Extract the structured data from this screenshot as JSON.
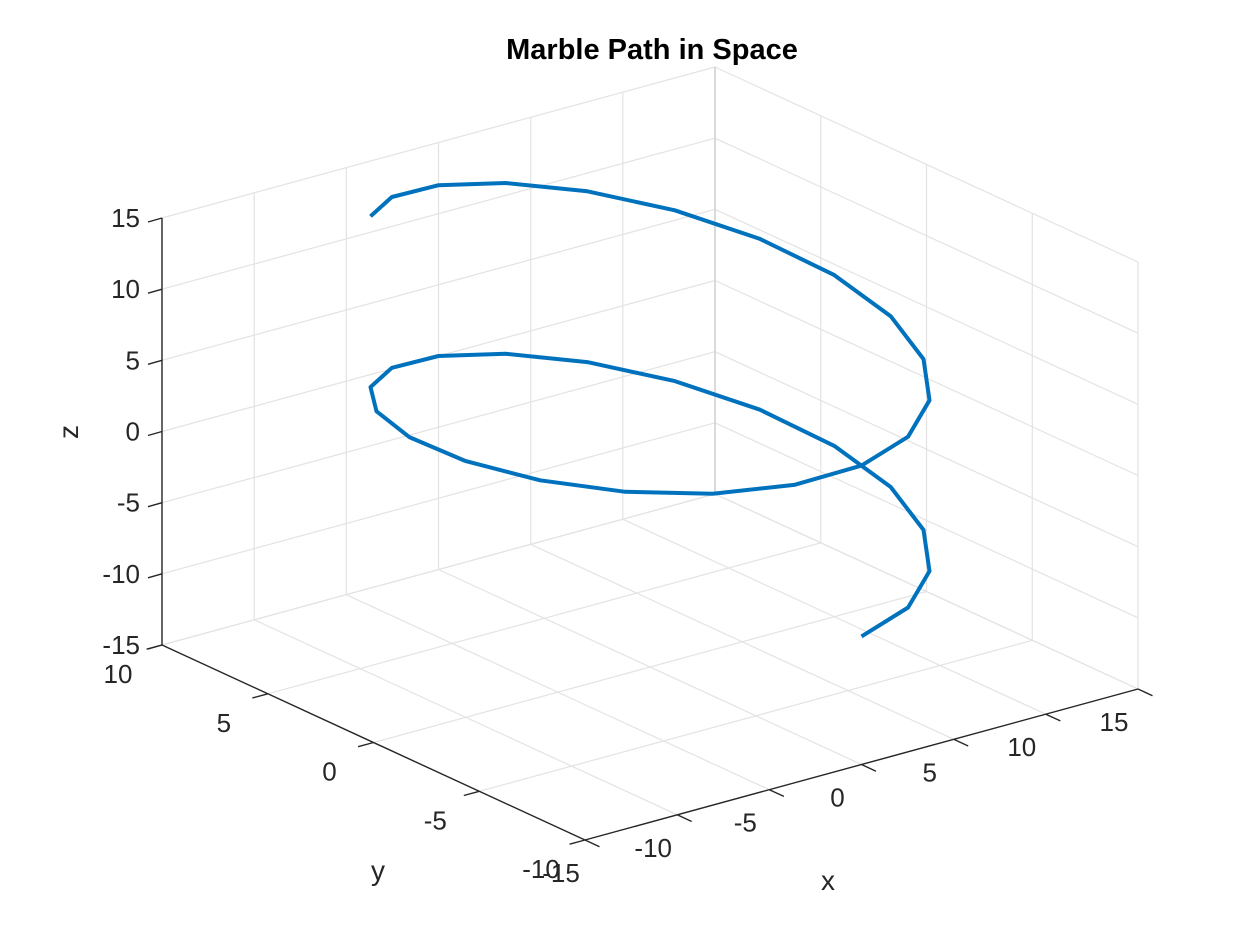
{
  "chart_data": {
    "type": "line3d",
    "title": "Marble Path in Space",
    "xlabel": "x",
    "ylabel": "y",
    "zlabel": "z",
    "xlim": [
      -15,
      15
    ],
    "ylim": [
      -10,
      10
    ],
    "zlim": [
      -15,
      15
    ],
    "grid": true,
    "x_ticks": [
      "-15",
      "-10",
      "-5",
      "0",
      "5",
      "10",
      "15"
    ],
    "y_ticks": [
      "-10",
      "-5",
      "0",
      "5",
      "10"
    ],
    "z_ticks": [
      "-15",
      "-10",
      "-5",
      "0",
      "5",
      "10",
      "15"
    ],
    "series": [
      {
        "color": "#0072BD",
        "points": [
          [
            0.0,
            -10.0,
            -6.0
          ],
          [
            3.09,
            -9.51,
            -5.4
          ],
          [
            5.88,
            -8.09,
            -4.8
          ],
          [
            8.09,
            -5.88,
            -4.2
          ],
          [
            9.51,
            -3.09,
            -3.6
          ],
          [
            10.0,
            0.0,
            -3.0
          ],
          [
            9.51,
            3.09,
            -2.4
          ],
          [
            8.09,
            5.88,
            -1.8
          ],
          [
            5.88,
            8.09,
            -1.2
          ],
          [
            3.09,
            9.51,
            -0.6
          ],
          [
            0.0,
            10.0,
            0.0
          ],
          [
            -3.09,
            9.51,
            0.6
          ],
          [
            -5.88,
            8.09,
            1.2
          ],
          [
            -8.09,
            5.88,
            1.8
          ],
          [
            -9.51,
            3.09,
            2.4
          ],
          [
            -10.0,
            0.0,
            3.0
          ],
          [
            -9.51,
            -3.09,
            3.6
          ],
          [
            -8.09,
            -5.88,
            4.2
          ],
          [
            -5.88,
            -8.09,
            4.8
          ],
          [
            -3.09,
            -9.51,
            5.4
          ],
          [
            0.0,
            -10.0,
            6.0
          ],
          [
            3.09,
            -9.51,
            6.6
          ],
          [
            5.88,
            -8.09,
            7.2
          ],
          [
            8.09,
            -5.88,
            7.8
          ],
          [
            9.51,
            -3.09,
            8.4
          ],
          [
            10.0,
            0.0,
            9.0
          ],
          [
            9.51,
            3.09,
            9.6
          ],
          [
            8.09,
            5.88,
            10.2
          ],
          [
            5.88,
            8.09,
            10.8
          ],
          [
            3.09,
            9.51,
            11.4
          ],
          [
            0.0,
            10.0,
            12.0
          ],
          [
            -3.09,
            9.51,
            12.6
          ],
          [
            -5.88,
            8.09,
            13.2
          ]
        ]
      }
    ]
  }
}
